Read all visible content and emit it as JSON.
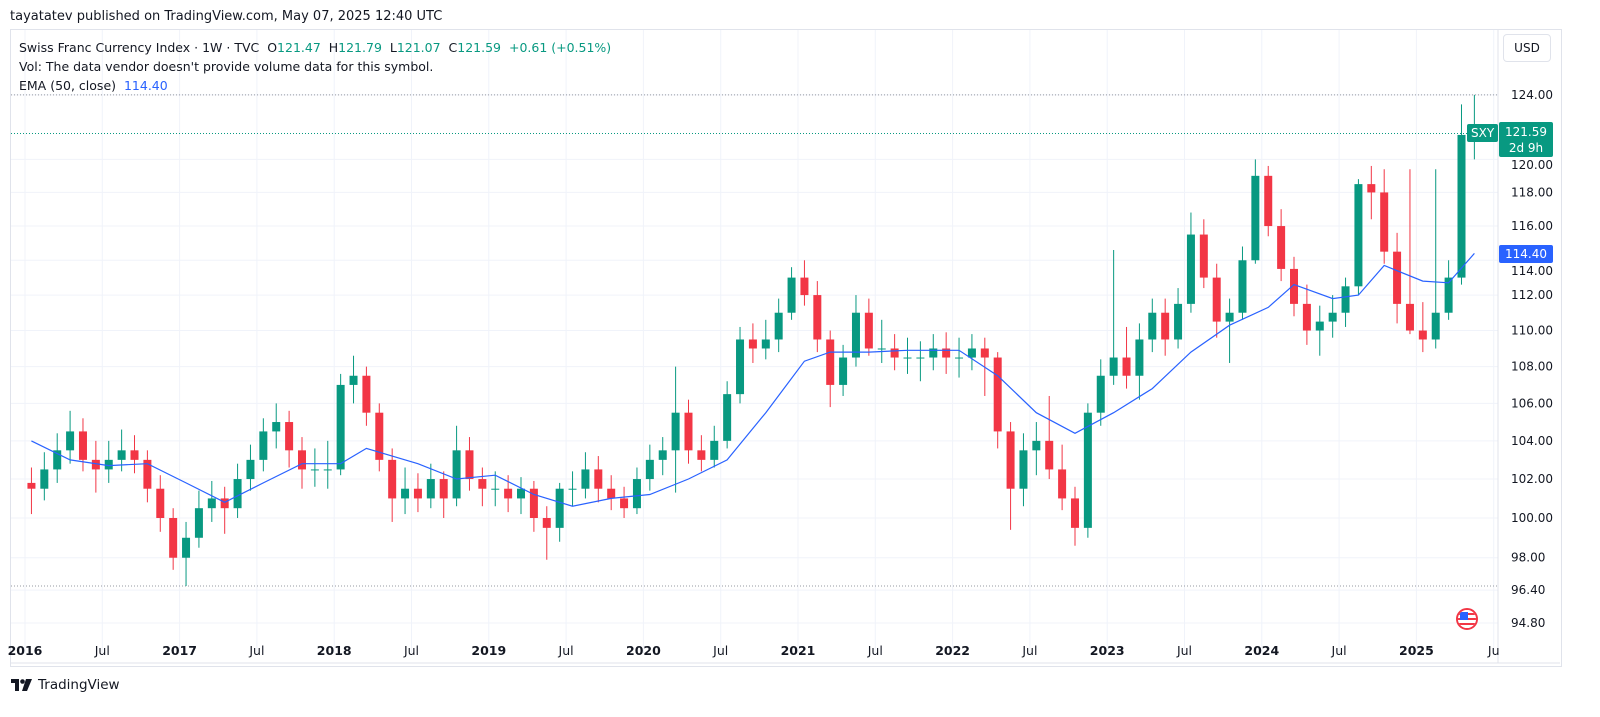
{
  "publisher_line": "tayatatev published on TradingView.com, May 07, 2025 12:40 UTC",
  "legend": {
    "symbol_line": "Swiss Franc Currency Index · 1W · TVC",
    "open_label": "O",
    "open": "121.47",
    "high_label": "H",
    "high": "121.79",
    "low_label": "L",
    "low": "121.07",
    "close_label": "C",
    "close": "121.59",
    "change": "+0.61 (+0.51%)",
    "vol_line": "Vol: The data vendor doesn't provide volume data for this symbol.",
    "ema_label": "EMA (50, close)",
    "ema_value": "114.40"
  },
  "currency_button": "USD",
  "price_tag": {
    "symbol": "SXY",
    "price": "121.59",
    "countdown": "2d 9h"
  },
  "ema_tag": "114.40",
  "brand": "TradingView",
  "colors": {
    "up": "#089981",
    "down": "#f23645",
    "ema": "#2962ff",
    "grid": "#f0f3fa"
  },
  "chart_data": {
    "type": "candlestick",
    "scale": "log",
    "ylim": [
      94.4,
      125.2
    ],
    "y_ticks": [
      "124.00",
      "120.00",
      "118.00",
      "116.00",
      "114.00",
      "112.00",
      "110.00",
      "108.00",
      "106.00",
      "104.00",
      "102.00",
      "100.00",
      "98.00",
      "96.40",
      "94.80"
    ],
    "x_ticks": [
      {
        "label": "2016",
        "t": 2016.0,
        "bold": true
      },
      {
        "label": "Jul",
        "t": 2016.5
      },
      {
        "label": "2017",
        "t": 2017.0,
        "bold": true
      },
      {
        "label": "Jul",
        "t": 2017.5
      },
      {
        "label": "2018",
        "t": 2018.0,
        "bold": true
      },
      {
        "label": "Jul",
        "t": 2018.5
      },
      {
        "label": "2019",
        "t": 2019.0,
        "bold": true
      },
      {
        "label": "Jul",
        "t": 2019.5
      },
      {
        "label": "2020",
        "t": 2020.0,
        "bold": true
      },
      {
        "label": "Jul",
        "t": 2020.5
      },
      {
        "label": "2021",
        "t": 2021.0,
        "bold": true
      },
      {
        "label": "Jul",
        "t": 2021.5
      },
      {
        "label": "2022",
        "t": 2022.0,
        "bold": true
      },
      {
        "label": "Jul",
        "t": 2022.5
      },
      {
        "label": "2023",
        "t": 2023.0,
        "bold": true
      },
      {
        "label": "Jul",
        "t": 2023.5
      },
      {
        "label": "2024",
        "t": 2024.0,
        "bold": true
      },
      {
        "label": "Jul",
        "t": 2024.5
      },
      {
        "label": "2025",
        "t": 2025.0,
        "bold": true
      },
      {
        "label": "Ju",
        "t": 2025.5
      }
    ],
    "reference_lines": [
      124.0,
      121.59,
      96.6
    ],
    "start": "2016-01",
    "ohlc": [
      [
        101.8,
        102.6,
        100.2,
        101.5
      ],
      [
        101.5,
        103.4,
        100.9,
        102.5
      ],
      [
        102.5,
        104.4,
        101.8,
        103.5
      ],
      [
        103.5,
        105.6,
        102.8,
        104.5
      ],
      [
        104.5,
        105.2,
        102.4,
        103.0
      ],
      [
        103.0,
        104.0,
        101.3,
        102.5
      ],
      [
        102.5,
        104.0,
        101.8,
        103.0
      ],
      [
        103.0,
        104.6,
        102.4,
        103.5
      ],
      [
        103.5,
        104.3,
        102.3,
        103.0
      ],
      [
        103.0,
        103.5,
        100.8,
        101.5
      ],
      [
        101.5,
        102.2,
        99.3,
        100.0
      ],
      [
        100.0,
        100.5,
        97.4,
        98.0
      ],
      [
        98.0,
        99.8,
        96.6,
        99.0
      ],
      [
        99.0,
        101.4,
        98.5,
        100.5
      ],
      [
        100.5,
        101.9,
        99.8,
        101.0
      ],
      [
        101.0,
        101.6,
        99.2,
        100.5
      ],
      [
        100.5,
        102.8,
        100.0,
        102.0
      ],
      [
        102.0,
        103.8,
        101.4,
        103.0
      ],
      [
        103.0,
        105.2,
        102.4,
        104.5
      ],
      [
        104.5,
        106.0,
        103.6,
        105.0
      ],
      [
        105.0,
        105.6,
        102.6,
        103.5
      ],
      [
        103.5,
        104.2,
        101.5,
        102.5
      ],
      [
        102.5,
        103.6,
        101.6,
        102.5
      ],
      [
        102.5,
        104.0,
        101.5,
        102.5
      ],
      [
        102.5,
        107.6,
        102.2,
        107.0
      ],
      [
        107.0,
        108.6,
        106.0,
        107.5
      ],
      [
        107.5,
        108.0,
        104.8,
        105.5
      ],
      [
        105.5,
        106.0,
        102.4,
        103.0
      ],
      [
        103.0,
        103.6,
        99.8,
        101.0
      ],
      [
        101.0,
        102.6,
        100.2,
        101.5
      ],
      [
        101.5,
        102.3,
        100.3,
        101.0
      ],
      [
        101.0,
        102.8,
        100.5,
        102.0
      ],
      [
        102.0,
        102.4,
        100.0,
        101.0
      ],
      [
        101.0,
        104.8,
        100.6,
        103.5
      ],
      [
        103.5,
        104.2,
        101.4,
        102.0
      ],
      [
        102.0,
        102.6,
        100.6,
        101.5
      ],
      [
        101.5,
        102.4,
        100.6,
        101.5
      ],
      [
        101.5,
        102.2,
        100.3,
        101.0
      ],
      [
        101.0,
        102.1,
        100.2,
        101.5
      ],
      [
        101.5,
        101.9,
        99.3,
        100.0
      ],
      [
        100.0,
        100.6,
        97.9,
        99.5
      ],
      [
        99.5,
        101.8,
        98.8,
        101.5
      ],
      [
        101.5,
        102.4,
        100.6,
        101.5
      ],
      [
        101.5,
        103.4,
        101.0,
        102.5
      ],
      [
        102.5,
        103.2,
        100.8,
        101.5
      ],
      [
        101.5,
        102.2,
        100.4,
        101.0
      ],
      [
        101.0,
        101.6,
        100.0,
        100.5
      ],
      [
        100.5,
        102.6,
        100.2,
        102.0
      ],
      [
        102.0,
        103.8,
        101.4,
        103.0
      ],
      [
        103.0,
        104.2,
        102.2,
        103.5
      ],
      [
        103.5,
        108.0,
        101.3,
        105.5
      ],
      [
        105.5,
        106.2,
        102.8,
        103.5
      ],
      [
        103.5,
        104.3,
        102.4,
        103.0
      ],
      [
        103.0,
        104.8,
        102.6,
        104.0
      ],
      [
        104.0,
        107.2,
        103.6,
        106.5
      ],
      [
        106.5,
        110.2,
        106.0,
        109.5
      ],
      [
        109.5,
        110.4,
        108.2,
        109.0
      ],
      [
        109.0,
        110.6,
        108.4,
        109.5
      ],
      [
        109.5,
        111.8,
        108.8,
        111.0
      ],
      [
        111.0,
        113.6,
        110.6,
        113.0
      ],
      [
        113.0,
        114.0,
        111.4,
        112.0
      ],
      [
        112.0,
        112.8,
        108.8,
        109.5
      ],
      [
        109.5,
        110.0,
        105.8,
        107.0
      ],
      [
        107.0,
        109.2,
        106.4,
        108.5
      ],
      [
        108.5,
        112.0,
        108.0,
        111.0
      ],
      [
        111.0,
        111.8,
        108.6,
        109.0
      ],
      [
        109.0,
        110.6,
        108.2,
        109.0
      ],
      [
        109.0,
        109.8,
        107.8,
        108.5
      ],
      [
        108.5,
        109.6,
        107.6,
        108.5
      ],
      [
        108.5,
        109.4,
        107.2,
        108.5
      ],
      [
        108.5,
        109.8,
        107.8,
        109.0
      ],
      [
        109.0,
        109.9,
        107.6,
        108.5
      ],
      [
        108.5,
        109.6,
        107.4,
        108.5
      ],
      [
        108.5,
        109.8,
        107.8,
        109.0
      ],
      [
        109.0,
        109.6,
        106.4,
        108.5
      ],
      [
        108.5,
        108.8,
        103.6,
        104.5
      ],
      [
        104.5,
        105.0,
        99.4,
        101.5
      ],
      [
        101.5,
        104.4,
        100.6,
        103.5
      ],
      [
        103.5,
        105.0,
        102.2,
        104.0
      ],
      [
        104.0,
        106.4,
        102.0,
        102.5
      ],
      [
        102.5,
        103.8,
        100.4,
        101.0
      ],
      [
        101.0,
        101.6,
        98.6,
        99.5
      ],
      [
        99.5,
        106.0,
        99.0,
        105.5
      ],
      [
        105.5,
        108.4,
        104.8,
        107.5
      ],
      [
        107.5,
        114.6,
        107.0,
        108.5
      ],
      [
        108.5,
        110.2,
        106.8,
        107.5
      ],
      [
        107.5,
        110.4,
        106.2,
        109.5
      ],
      [
        109.5,
        111.8,
        108.8,
        111.0
      ],
      [
        111.0,
        111.8,
        108.6,
        109.5
      ],
      [
        109.5,
        112.4,
        109.0,
        111.5
      ],
      [
        111.5,
        116.8,
        111.0,
        115.5
      ],
      [
        115.5,
        116.4,
        112.4,
        113.0
      ],
      [
        113.0,
        113.8,
        109.6,
        110.5
      ],
      [
        110.5,
        111.8,
        108.2,
        111.0
      ],
      [
        111.0,
        114.8,
        110.6,
        114.0
      ],
      [
        114.0,
        120.0,
        113.8,
        119.0
      ],
      [
        119.0,
        119.6,
        115.4,
        116.0
      ],
      [
        116.0,
        117.0,
        112.8,
        113.5
      ],
      [
        113.5,
        114.2,
        110.8,
        111.5
      ],
      [
        111.5,
        112.6,
        109.2,
        110.0
      ],
      [
        110.0,
        111.4,
        108.6,
        110.5
      ],
      [
        110.5,
        112.0,
        109.6,
        111.0
      ],
      [
        111.0,
        113.0,
        110.2,
        112.5
      ],
      [
        112.5,
        118.8,
        112.0,
        118.5
      ],
      [
        118.5,
        119.6,
        116.4,
        118.0
      ],
      [
        118.0,
        119.4,
        113.8,
        114.5
      ],
      [
        114.5,
        115.6,
        110.4,
        111.5
      ],
      [
        111.5,
        119.4,
        109.8,
        110.0
      ],
      [
        110.0,
        111.6,
        108.8,
        109.5
      ],
      [
        109.5,
        119.4,
        109.0,
        111.0
      ],
      [
        111.0,
        114.0,
        110.6,
        113.0
      ],
      [
        113.0,
        123.4,
        112.6,
        121.5
      ],
      [
        121.5,
        124.0,
        120.0,
        121.59
      ]
    ],
    "ema_50": [
      [
        "2016-01",
        104.0
      ],
      [
        "2016-04",
        103.0
      ],
      [
        "2016-07",
        102.7
      ],
      [
        "2016-10",
        102.8
      ],
      [
        "2017-01",
        101.8
      ],
      [
        "2017-04",
        100.8
      ],
      [
        "2017-07",
        101.8
      ],
      [
        "2017-10",
        102.8
      ],
      [
        "2018-01",
        102.8
      ],
      [
        "2018-03",
        103.6
      ],
      [
        "2018-07",
        102.8
      ],
      [
        "2018-10",
        102.0
      ],
      [
        "2019-01",
        102.2
      ],
      [
        "2019-04",
        101.2
      ],
      [
        "2019-07",
        100.6
      ],
      [
        "2019-10",
        101.0
      ],
      [
        "2020-01",
        101.2
      ],
      [
        "2020-04",
        102.0
      ],
      [
        "2020-07",
        103.0
      ],
      [
        "2020-10",
        105.5
      ],
      [
        "2021-01",
        108.3
      ],
      [
        "2021-03",
        108.8
      ],
      [
        "2021-06",
        108.8
      ],
      [
        "2021-09",
        108.9
      ],
      [
        "2022-01",
        108.9
      ],
      [
        "2022-04",
        107.5
      ],
      [
        "2022-07",
        105.5
      ],
      [
        "2022-10",
        104.4
      ],
      [
        "2023-01",
        105.5
      ],
      [
        "2023-04",
        106.8
      ],
      [
        "2023-07",
        108.8
      ],
      [
        "2023-10",
        110.3
      ],
      [
        "2024-01",
        111.3
      ],
      [
        "2024-03",
        112.6
      ],
      [
        "2024-06",
        111.8
      ],
      [
        "2024-08",
        112.0
      ],
      [
        "2024-10",
        113.7
      ],
      [
        "2025-01",
        112.8
      ],
      [
        "2025-03",
        112.7
      ],
      [
        "2025-05",
        114.4
      ]
    ]
  }
}
